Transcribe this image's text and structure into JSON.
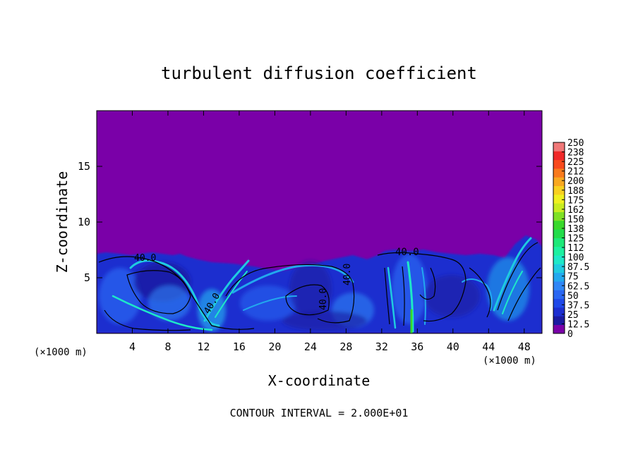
{
  "chart_data": {
    "type": "heatmap",
    "title": "turbulent diffusion coefficient",
    "xlabel": "X-coordinate",
    "ylabel": "Z-coordinate",
    "x_unit_left": "(×1000 m)",
    "x_unit_right": "(×1000 m)",
    "footer": "CONTOUR INTERVAL = 2.000E+01",
    "xlim": [
      0,
      50
    ],
    "ylim": [
      0,
      20
    ],
    "x_ticks": [
      4,
      8,
      12,
      16,
      20,
      24,
      28,
      32,
      36,
      40,
      44,
      48
    ],
    "y_ticks": [
      5,
      10,
      15
    ],
    "colorbar": {
      "labels": [
        "0",
        "12.5",
        "25",
        "37.5",
        "50",
        "62.5",
        "75",
        "87.5",
        "100",
        "112",
        "125",
        "138",
        "150",
        "162",
        "175",
        "188",
        "200",
        "212",
        "225",
        "238",
        "250"
      ],
      "colors": [
        "#7a00a8",
        "#1a1aa0",
        "#1c2ed0",
        "#1f48e8",
        "#2a66f2",
        "#2f86f5",
        "#22a8ee",
        "#1fcbe0",
        "#1ee8c8",
        "#1cf0a0",
        "#1ce878",
        "#22dc4a",
        "#38d82a",
        "#7ee024",
        "#c8ec20",
        "#f0f020",
        "#f8d020",
        "#f8a820",
        "#f87a1c",
        "#f84a1c",
        "#f02828",
        "#f07878"
      ]
    },
    "contour_labels": [
      "40.0",
      "40.0",
      "40.0",
      "40.0",
      "40.0"
    ],
    "background_value": 0,
    "turbulent_layer_top": 7
  }
}
